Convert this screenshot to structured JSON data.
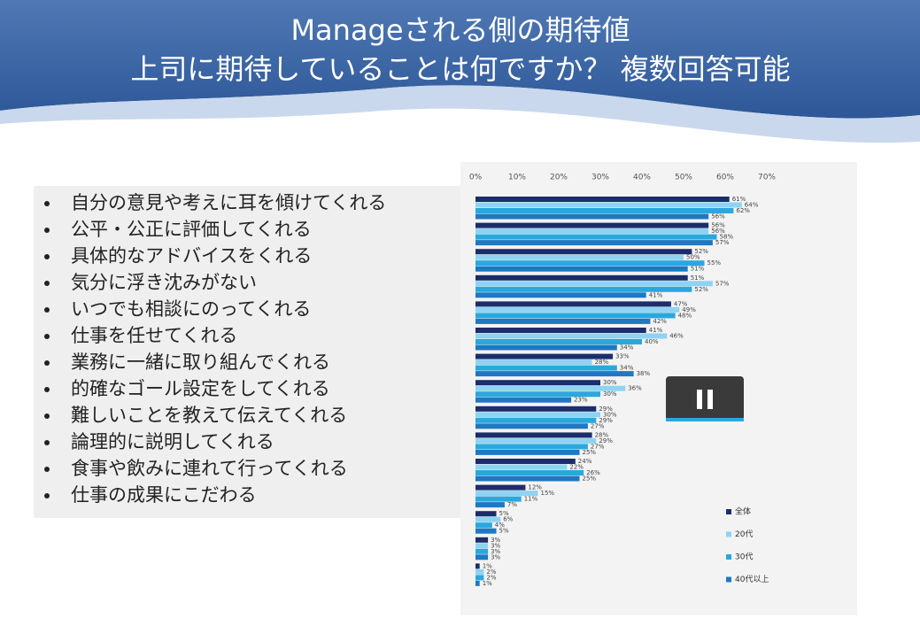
{
  "header": {
    "title": [
      "Manageされる側の期待値",
      "上司に期待していることは何ですか？ 複数回答可能"
    ]
  },
  "list": {
    "items": [
      "自分の意見や考えに耳を傾けてくれる",
      "公平・公正に評価してくれる",
      "具体的なアドバイスをくれる",
      "気分に浮き沈みがない",
      "いつでも相談にのってくれる",
      "仕事を任せてくれる",
      "業務に一緒に取り組んでくれる",
      "的確なゴール設定をしてくれる",
      "難しいことを教えて伝えてくれる",
      "論理的に説明してくれる",
      "食事や飲みに連れて行ってくれる",
      "仕事の成果にこだわる"
    ]
  },
  "chart_data": {
    "type": "hbar",
    "categories": [
      null,
      null,
      null,
      null,
      null,
      null,
      null,
      null,
      null,
      null,
      null,
      null,
      null,
      null,
      null
    ],
    "series": [
      {
        "name": "全体",
        "color": "#1b2d6b",
        "values": [
          61,
          56,
          52,
          51,
          47,
          41,
          33,
          30,
          29,
          28,
          24,
          12,
          5,
          3,
          1
        ],
        "value_labels": [
          "61%",
          "56%",
          "52%",
          "51%",
          "47%",
          "41%",
          "33%",
          "30%",
          "29%",
          "28%",
          "24%",
          "12%",
          "5%",
          "3%",
          "1%"
        ]
      },
      {
        "name": "20代",
        "color": "#8fd3f2",
        "values": [
          64,
          56,
          50,
          57,
          49,
          46,
          28,
          36,
          30,
          29,
          22,
          15,
          6,
          3,
          2
        ],
        "value_labels": [
          "64%",
          "56%",
          "50%",
          "57%",
          "49%",
          "46%",
          "28%",
          "36%",
          "30%",
          "29%",
          "22%",
          "15%",
          "6%",
          "3%",
          "2%"
        ]
      },
      {
        "name": "30代",
        "color": "#2aa8de",
        "values": [
          62,
          58,
          55,
          52,
          48,
          40,
          34,
          30,
          29,
          27,
          26,
          11,
          4,
          3,
          2
        ],
        "value_labels": [
          "62%",
          "58%",
          "55%",
          "52%",
          "48%",
          "40%",
          "34%",
          "30%",
          "29%",
          "27%",
          "26%",
          "11%",
          "4%",
          "3%",
          "2%"
        ]
      },
      {
        "name": "40代以上",
        "color": "#1f78c2",
        "values": [
          56,
          57,
          51,
          41,
          42,
          34,
          38,
          23,
          27,
          25,
          25,
          7,
          5,
          3,
          1
        ],
        "value_labels": [
          "56%",
          "57%",
          "51%",
          "41%",
          "42%",
          "34%",
          "38%",
          "23%",
          "27%",
          "25%",
          "25%",
          "7%",
          "5%",
          "3%",
          "1%"
        ]
      }
    ],
    "xlim": [
      0,
      70
    ],
    "xticks": [
      {
        "value": 0,
        "label": "0%"
      },
      {
        "value": 10,
        "label": "10%"
      },
      {
        "value": 20,
        "label": "20%"
      },
      {
        "value": 30,
        "label": "30%"
      },
      {
        "value": 40,
        "label": "40%"
      },
      {
        "value": 50,
        "label": "50%"
      },
      {
        "value": 60,
        "label": "60%"
      },
      {
        "value": 70,
        "label": "70%"
      }
    ],
    "legend": "bottom-right"
  }
}
